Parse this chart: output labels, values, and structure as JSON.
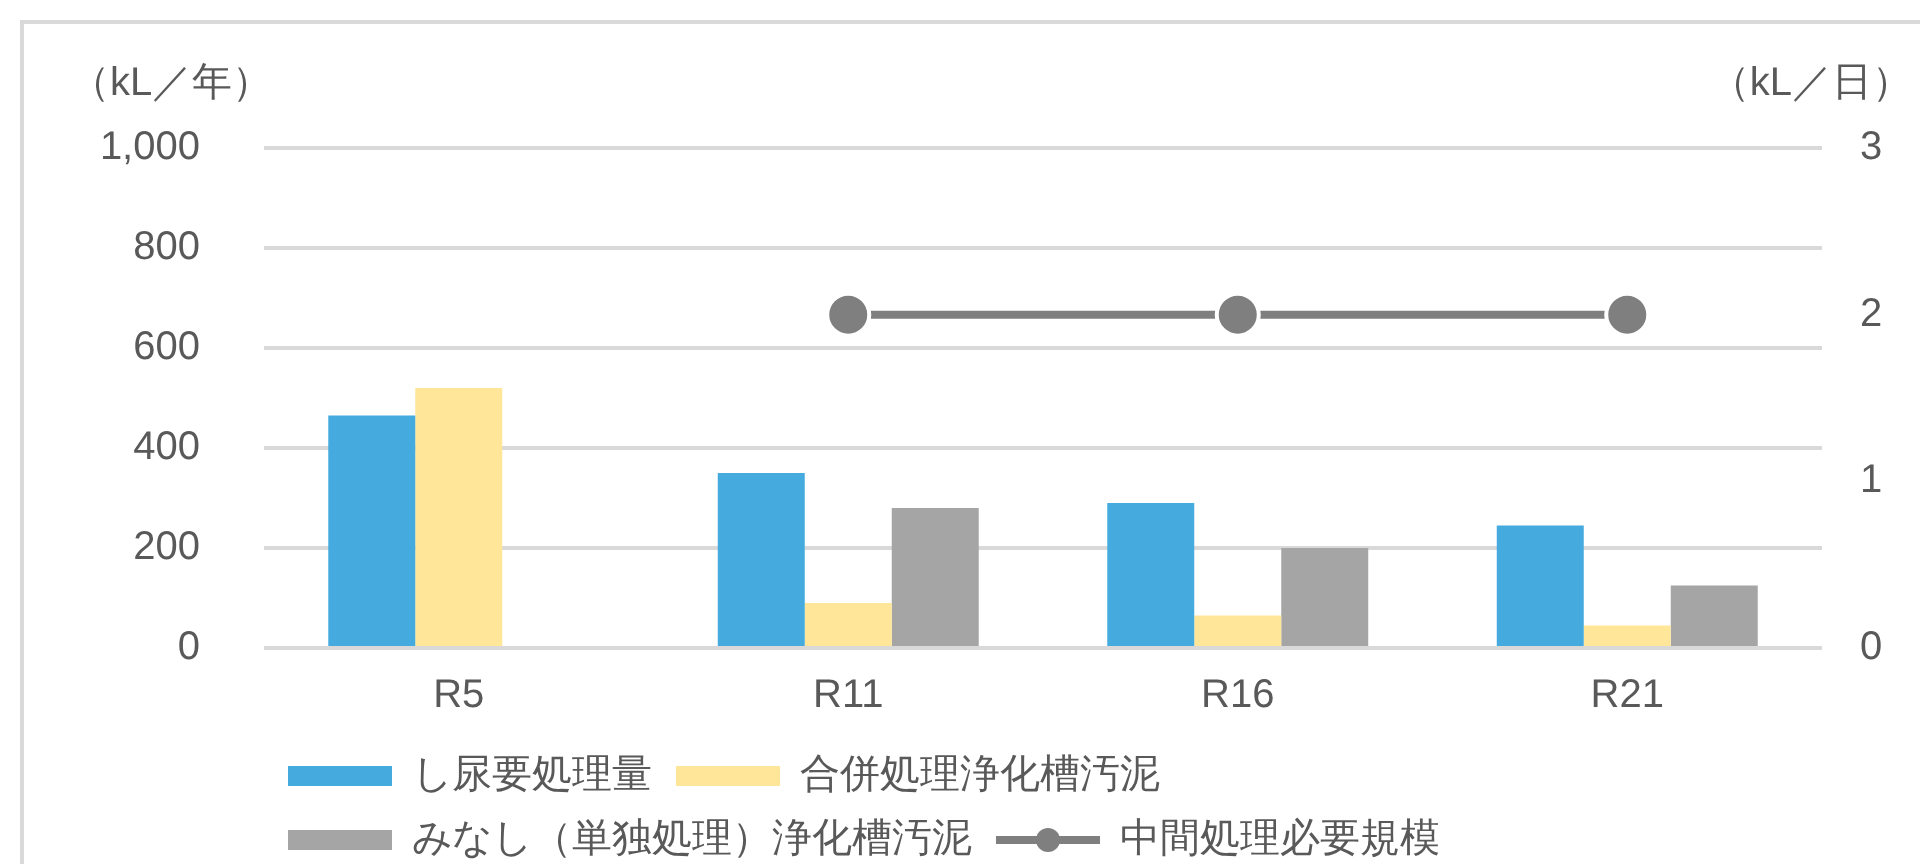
{
  "chart_data": {
    "type": "bar",
    "ylabel": "（kL／年）",
    "y2label": "（kL／日）",
    "categories": [
      "R5",
      "R11",
      "R16",
      "R21"
    ],
    "series": [
      {
        "name": "し尿要処理量",
        "color": "#45abdf",
        "values": [
          465,
          350,
          290,
          245
        ]
      },
      {
        "name": "合併処理浄化槽汚泥",
        "color": "#ffe699",
        "values": [
          520,
          90,
          65,
          45
        ]
      },
      {
        "name": "みなし（単独処理）浄化槽汚泥",
        "color": "#a5a5a5",
        "values": [
          null,
          280,
          200,
          125
        ]
      },
      {
        "name": "中間処理必要規模",
        "type": "line",
        "axis": "y2",
        "color": "#7f7f7f",
        "values": [
          null,
          2,
          2,
          2
        ]
      }
    ],
    "ylim": [
      0,
      1000
    ],
    "yticks": [
      0,
      200,
      400,
      600,
      800,
      {
        "value": 1000,
        "label": "1,000"
      }
    ],
    "y2lim": [
      0,
      3
    ],
    "y2ticks": [
      0,
      1,
      2,
      3
    ],
    "grid": "y",
    "legend": "bottom",
    "marker": "circle",
    "line_style": "solid"
  }
}
